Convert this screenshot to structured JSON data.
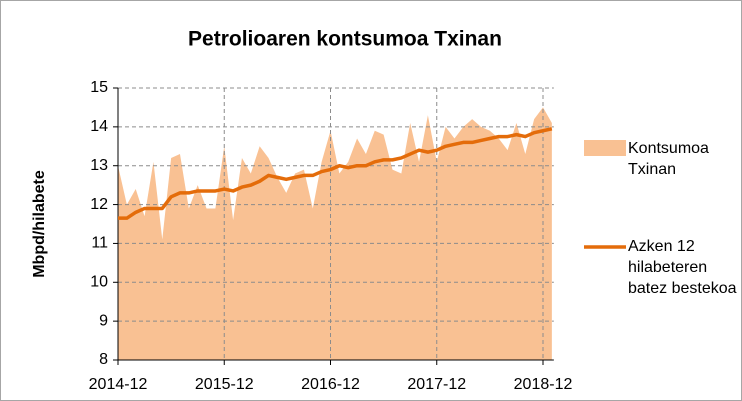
{
  "chart_data": {
    "type": "area-line",
    "title": "Petrolioaren kontsumoa Txinan",
    "y_label": "Mbpd/hilabete",
    "categories": [
      "2014-12",
      null,
      null,
      null,
      null,
      null,
      null,
      null,
      null,
      null,
      null,
      null,
      "2015-12",
      null,
      null,
      null,
      null,
      null,
      null,
      null,
      null,
      null,
      null,
      null,
      "2016-12",
      null,
      null,
      null,
      null,
      null,
      null,
      null,
      null,
      null,
      null,
      null,
      "2017-12",
      null,
      null,
      null,
      null,
      null,
      null,
      null,
      null,
      null,
      null,
      null,
      "2018-12",
      null
    ],
    "series": [
      {
        "name": "Kontsumoa Txinan",
        "color": "#f9c193",
        "kind": "area",
        "values": [
          13.0,
          12.0,
          12.4,
          11.7,
          13.1,
          11.1,
          13.2,
          13.3,
          11.9,
          12.5,
          11.9,
          11.9,
          13.5,
          11.6,
          13.2,
          12.8,
          13.5,
          13.2,
          12.7,
          12.3,
          12.8,
          12.9,
          11.9,
          13.1,
          13.9,
          12.8,
          13.1,
          13.7,
          13.3,
          13.9,
          13.8,
          12.9,
          12.8,
          14.1,
          13.1,
          14.3,
          13.1,
          14.0,
          13.7,
          14.0,
          14.2,
          14.0,
          13.9,
          13.7,
          13.4,
          14.1,
          13.3,
          14.2,
          14.5,
          14.1
        ]
      },
      {
        "name": "Azken 12 hilabeteren batez bestekoa",
        "color": "#e46c0a",
        "kind": "line",
        "values": [
          11.65,
          11.65,
          11.8,
          11.9,
          11.9,
          11.9,
          12.2,
          12.3,
          12.3,
          12.35,
          12.35,
          12.35,
          12.4,
          12.35,
          12.45,
          12.5,
          12.6,
          12.75,
          12.7,
          12.65,
          12.7,
          12.75,
          12.75,
          12.85,
          12.9,
          13.0,
          12.95,
          13.0,
          13.0,
          13.1,
          13.15,
          13.15,
          13.2,
          13.3,
          13.4,
          13.35,
          13.4,
          13.5,
          13.55,
          13.6,
          13.6,
          13.65,
          13.7,
          13.75,
          13.75,
          13.8,
          13.75,
          13.85,
          13.9,
          13.95
        ]
      }
    ],
    "ylim": [
      8,
      15
    ],
    "yticks": [
      8,
      9,
      10,
      11,
      12,
      13,
      14,
      15
    ],
    "grid": true
  }
}
